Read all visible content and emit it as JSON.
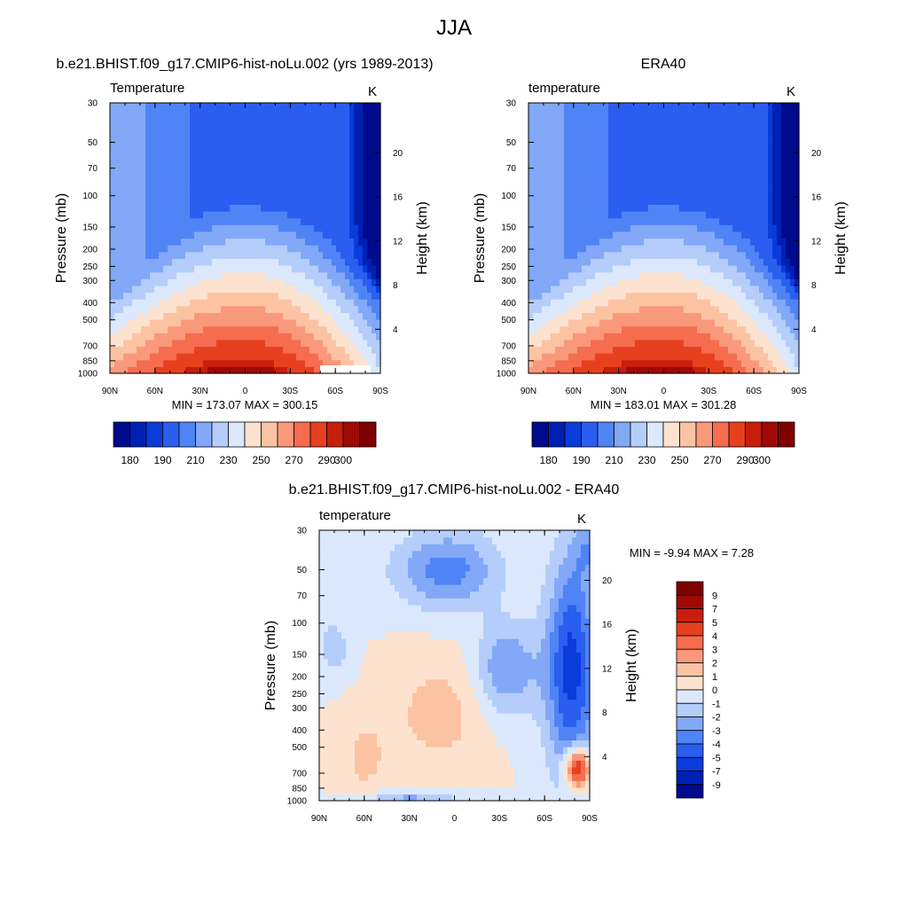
{
  "figure": {
    "title": "JJA"
  },
  "chart_data": [
    {
      "id": "model",
      "type": "heatmap",
      "title": "b.e21.BHIST.f09_g17.CMIP6-hist-noLu.002 (yrs 1989-2013)",
      "left_label": "Temperature",
      "units": "K",
      "ylabel": "Pressure (mb)",
      "ylabel_right": "Height (km)",
      "x_ticks": [
        "90N",
        "60N",
        "30N",
        "0",
        "30S",
        "60S",
        "90S"
      ],
      "y_ticks": [
        "30",
        "50",
        "70",
        "100",
        "150",
        "200",
        "250",
        "300",
        "400",
        "500",
        "700",
        "850",
        "1000"
      ],
      "height_ticks": [
        "20",
        "16",
        "12",
        "8",
        "4"
      ],
      "ylim": [
        1000,
        30
      ],
      "stats": "MIN = 173.07  MAX = 300.15",
      "colorbar_labels": [
        "180",
        "190",
        "210",
        "230",
        "250",
        "270",
        "290",
        "300"
      ],
      "levels": [
        180,
        185,
        190,
        200,
        210,
        220,
        230,
        240,
        250,
        260,
        270,
        280,
        290,
        295,
        300
      ]
    },
    {
      "id": "obs",
      "type": "heatmap",
      "title": "ERA40",
      "left_label": "temperature",
      "units": "K",
      "ylabel": "Pressure (mb)",
      "ylabel_right": "Height (km)",
      "x_ticks": [
        "90N",
        "60N",
        "30N",
        "0",
        "30S",
        "60S",
        "90S"
      ],
      "y_ticks": [
        "30",
        "50",
        "70",
        "100",
        "150",
        "200",
        "250",
        "300",
        "400",
        "500",
        "700",
        "850",
        "1000"
      ],
      "height_ticks": [
        "20",
        "16",
        "12",
        "8",
        "4"
      ],
      "ylim": [
        1000,
        30
      ],
      "stats": "MIN = 183.01  MAX = 301.28",
      "colorbar_labels": [
        "180",
        "190",
        "210",
        "230",
        "250",
        "270",
        "290",
        "300"
      ],
      "levels": [
        180,
        185,
        190,
        200,
        210,
        220,
        230,
        240,
        250,
        260,
        270,
        280,
        290,
        295,
        300
      ]
    },
    {
      "id": "diff",
      "type": "heatmap",
      "title": "b.e21.BHIST.f09_g17.CMIP6-hist-noLu.002 - ERA40",
      "left_label": "temperature",
      "units": "K",
      "ylabel": "Pressure (mb)",
      "ylabel_right": "Height (km)",
      "x_ticks": [
        "90N",
        "60N",
        "30N",
        "0",
        "30S",
        "60S",
        "90S"
      ],
      "y_ticks": [
        "30",
        "50",
        "70",
        "100",
        "150",
        "200",
        "250",
        "300",
        "400",
        "500",
        "700",
        "850",
        "1000"
      ],
      "height_ticks": [
        "20",
        "16",
        "12",
        "8",
        "4"
      ],
      "ylim": [
        1000,
        30
      ],
      "stats": "MIN =  -9.94  MAX =   7.28",
      "colorbar_labels": [
        "9",
        "7",
        "5",
        "4",
        "3",
        "2",
        "1",
        "0",
        "-1",
        "-2",
        "-3",
        "-4",
        "-5",
        "-7",
        "-9"
      ],
      "levels": [
        -9,
        -7,
        -5,
        -4,
        -3,
        -2,
        -1,
        0,
        1,
        2,
        3,
        4,
        5,
        7,
        9
      ]
    }
  ],
  "colors": {
    "abs_palette": [
      "#000a8c",
      "#0020b4",
      "#0a3cdc",
      "#2a5ef0",
      "#5083f5",
      "#82a8f7",
      "#b4cdfa",
      "#dbe8fd",
      "#fde3cf",
      "#fcc3a3",
      "#f9987b",
      "#f56c4f",
      "#e6401f",
      "#c81e0c",
      "#a00a05",
      "#800000"
    ],
    "diff_palette": [
      "#000a8c",
      "#0020b4",
      "#0a3cdc",
      "#2a5ef0",
      "#5083f5",
      "#82a8f7",
      "#b4cdfa",
      "#dbe8fd",
      "#fde3cf",
      "#fcc3a3",
      "#f9987b",
      "#f56c4f",
      "#e6401f",
      "#c81e0c",
      "#a00a05",
      "#800000"
    ]
  }
}
